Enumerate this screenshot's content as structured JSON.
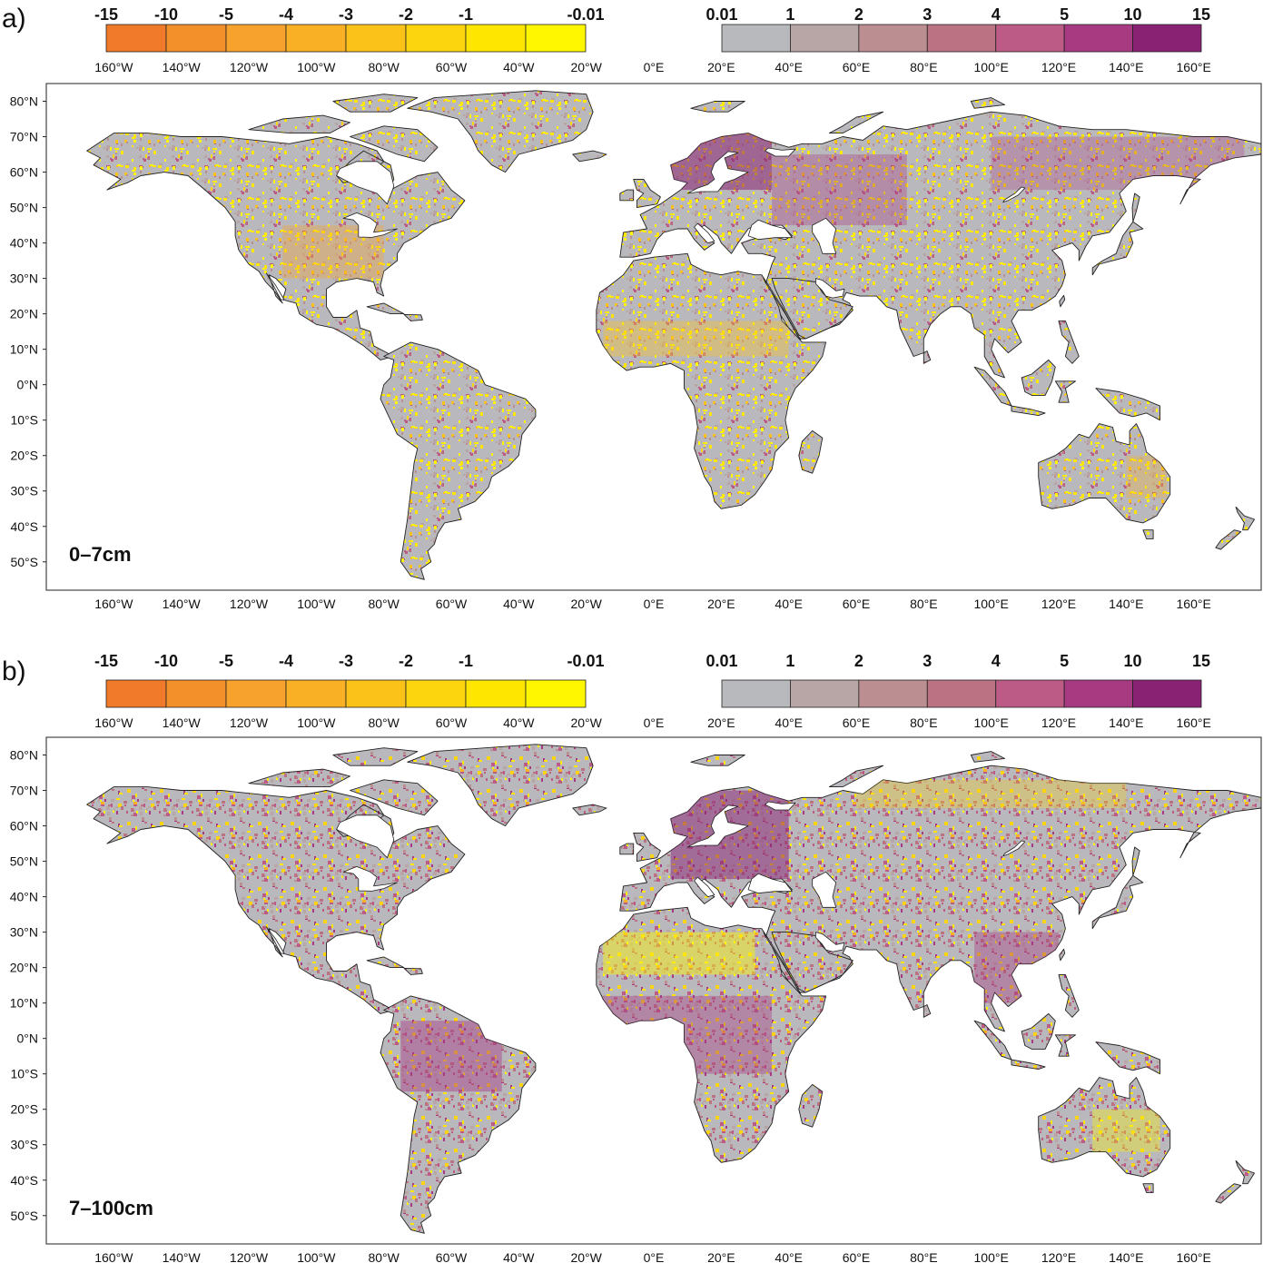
{
  "colors": {
    "negative": [
      "#f07a2a",
      "#f4902a",
      "#f7a22c",
      "#f9b024",
      "#fbc21a",
      "#fdd50e",
      "#ffe600",
      "#fff700"
    ],
    "positive": [
      "#b8b9bd",
      "#b8a6a6",
      "#bb8e92",
      "#bb7383",
      "#bb5b86",
      "#a83a82",
      "#8a2273"
    ],
    "land_base": "#b9b9bd",
    "coast": "#222222"
  },
  "legend": {
    "negative_breaks": [
      "-15",
      "-10",
      "-5",
      "-4",
      "-3",
      "-2",
      "-1",
      "-0.01"
    ],
    "positive_breaks": [
      "0.01",
      "1",
      "2",
      "3",
      "4",
      "5",
      "10",
      "15"
    ]
  },
  "axes": {
    "lon_labels": [
      "160°W",
      "140°W",
      "120°W",
      "100°W",
      "80°W",
      "60°W",
      "40°W",
      "20°W",
      "0°E",
      "20°E",
      "40°E",
      "60°E",
      "80°E",
      "100°E",
      "120°E",
      "140°E",
      "160°E"
    ],
    "lon_values": [
      -160,
      -140,
      -120,
      -100,
      -80,
      -60,
      -40,
      -20,
      0,
      20,
      40,
      60,
      80,
      100,
      120,
      140,
      160
    ],
    "lat_labels": [
      "80°N",
      "70°N",
      "60°N",
      "50°N",
      "40°N",
      "30°N",
      "20°N",
      "10°N",
      "0°N",
      "10°S",
      "20°S",
      "30°S",
      "40°S",
      "50°S"
    ],
    "lat_values": [
      80,
      70,
      60,
      50,
      40,
      30,
      20,
      10,
      0,
      -10,
      -20,
      -30,
      -40,
      -50
    ],
    "lon_range": [
      -180,
      180
    ],
    "lat_range": [
      -58,
      85
    ]
  },
  "panels": [
    {
      "letter": "a)",
      "depth": "0–7cm",
      "variant": 0
    },
    {
      "letter": "b)",
      "depth": "7–100cm",
      "variant": 1
    }
  ]
}
